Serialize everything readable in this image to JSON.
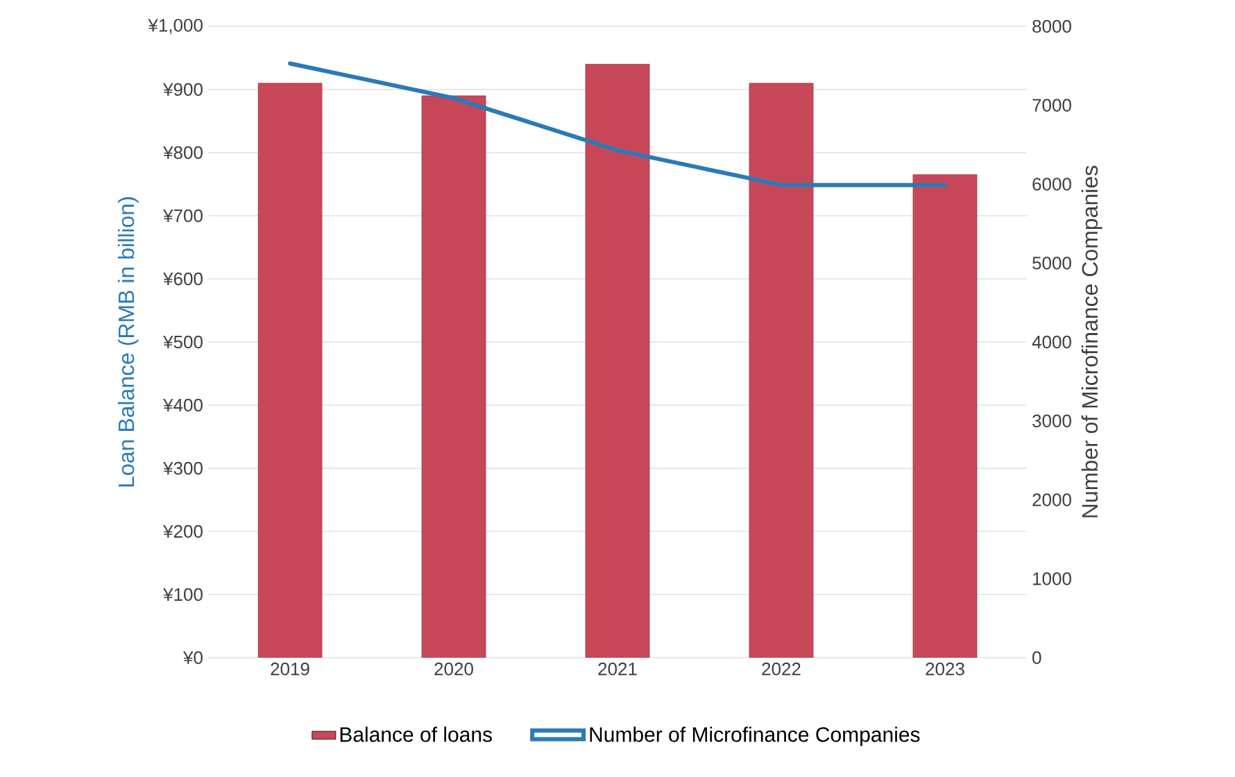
{
  "chart_data": {
    "type": "bar",
    "categories": [
      "2019",
      "2020",
      "2021",
      "2022",
      "2023"
    ],
    "series": [
      {
        "name": "Balance of loans",
        "color": "#c8485a",
        "values": [
          910,
          890,
          940,
          910,
          765
        ]
      },
      {
        "name": "Number of Microfinance Companies",
        "type": "line",
        "axis": "y2",
        "color": "#2a7ab8",
        "values": [
          7530,
          7090,
          6430,
          5990,
          5990
        ]
      }
    ],
    "ylabel": "Loan Balance (RMB in billion)",
    "y2label": "Number of Microfinance Companies",
    "ylim": [
      0,
      1000
    ],
    "yticks": [
      {
        "value": 0,
        "label": "¥0"
      },
      {
        "value": 100,
        "label": "¥100"
      },
      {
        "value": 200,
        "label": "¥200"
      },
      {
        "value": 300,
        "label": "¥300"
      },
      {
        "value": 400,
        "label": "¥400"
      },
      {
        "value": 500,
        "label": "¥500"
      },
      {
        "value": 600,
        "label": "¥600"
      },
      {
        "value": 700,
        "label": "¥700"
      },
      {
        "value": 800,
        "label": "¥800"
      },
      {
        "value": 900,
        "label": "¥900"
      },
      {
        "value": 1000,
        "label": "¥1,000"
      }
    ],
    "y2lim": [
      0,
      8000
    ],
    "y2ticks": [
      0,
      1000,
      2000,
      3000,
      4000,
      5000,
      6000,
      7000,
      8000
    ],
    "grid": "y",
    "legend": "bottom",
    "line_style": "solid",
    "marker": "none"
  }
}
